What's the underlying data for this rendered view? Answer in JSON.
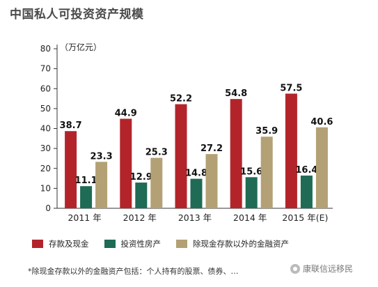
{
  "chart_data": {
    "type": "bar",
    "title": "中国私人可投资资产规模",
    "unit_label": "（万亿元）",
    "categories": [
      "2011 年",
      "2012 年",
      "2013 年",
      "2014 年",
      "2015 年"
    ],
    "category_suffix": [
      "",
      "",
      "",
      "",
      "(E)"
    ],
    "series": [
      {
        "name": "存款及现金",
        "color": "#b3242a",
        "values": [
          38.7,
          44.9,
          52.2,
          54.8,
          57.5
        ]
      },
      {
        "name": "投资性房产",
        "color": "#1f6b55",
        "values": [
          11.1,
          12.9,
          14.8,
          15.6,
          16.4
        ]
      },
      {
        "name": "除现金存款以外的金融资产",
        "color": "#b3a175",
        "values": [
          23.3,
          25.3,
          27.2,
          35.9,
          40.6
        ]
      }
    ],
    "ylim": [
      0,
      80
    ],
    "yticks": [
      0,
      10,
      20,
      30,
      40,
      50,
      60,
      70,
      80
    ],
    "grid": false,
    "legend_position": "bottom"
  },
  "legend": {
    "items": [
      "存款及现金",
      "投资性房产",
      "除现金存款以外的金融资产"
    ]
  },
  "footnote": "*除现金存款以外的金融资产包括：个人持有的股票、债券、…",
  "watermark": "康联信远移民"
}
